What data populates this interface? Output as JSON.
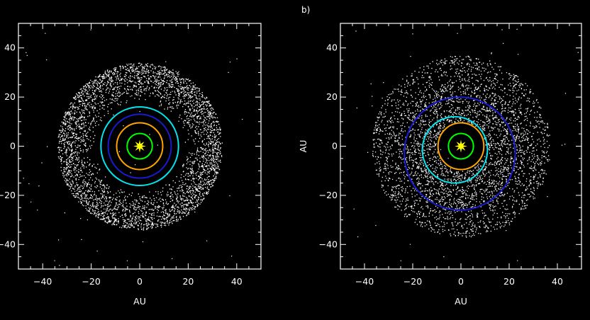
{
  "chart_data": [
    {
      "type": "scatter",
      "panel_label": "",
      "xlabel": "AU",
      "ylabel": "",
      "xlim": [
        -50,
        50
      ],
      "ylim": [
        -50,
        50
      ],
      "xticks": [
        -40,
        -20,
        0,
        20,
        40
      ],
      "yticks": [
        -40,
        -20,
        0,
        20,
        40
      ],
      "xtick_labels": [
        "−40",
        "−20",
        "0",
        "20",
        "40"
      ],
      "ytick_labels": [
        "−40",
        "−20",
        "0",
        "20",
        "40"
      ],
      "grid": false,
      "background": "#000000",
      "particles": {
        "description_free": true,
        "color": "#ffffff",
        "count": 3600,
        "r_min": 18,
        "r_max": 34,
        "center": [
          0,
          0
        ]
      },
      "star": {
        "x": 0,
        "y": 0,
        "color": "#ffff00"
      },
      "orbits": [
        {
          "cx": 0,
          "cy": 0,
          "r": 5.2,
          "color": "#00ff00"
        },
        {
          "cx": 0,
          "cy": 0,
          "r": 9.5,
          "color": "#ffa500"
        },
        {
          "cx": 0,
          "cy": 0,
          "r": 13.0,
          "color": "#1a1ad0"
        },
        {
          "cx": 0,
          "cy": 0,
          "r": 16.0,
          "color": "#00e5ee"
        }
      ]
    },
    {
      "type": "scatter",
      "panel_label": "b)",
      "xlabel": "AU",
      "ylabel": "AU",
      "xlim": [
        -50,
        50
      ],
      "ylim": [
        -50,
        50
      ],
      "xticks": [
        -40,
        -20,
        0,
        20,
        40
      ],
      "yticks": [
        -40,
        -20,
        0,
        20,
        40
      ],
      "xtick_labels": [
        "−40",
        "−20",
        "0",
        "20",
        "40"
      ],
      "ytick_labels": [
        "−40",
        "−20",
        "0",
        "20",
        "40"
      ],
      "grid": false,
      "background": "#000000",
      "particles": {
        "color": "#ffffff",
        "count": 3600,
        "r_min": 10,
        "r_max": 37,
        "center": [
          0,
          0
        ]
      },
      "star": {
        "x": 0,
        "y": 0,
        "color": "#ffff00"
      },
      "orbits": [
        {
          "cx": 0,
          "cy": 0,
          "r": 5.2,
          "color": "#00ff00"
        },
        {
          "cx": 0,
          "cy": 0,
          "r": 9.5,
          "color": "#ffa500"
        },
        {
          "cx": -2.5,
          "cy": -1.5,
          "r": 13.5,
          "color": "#00e5ee"
        },
        {
          "cx": -0.5,
          "cy": -3.0,
          "r": 23.0,
          "color": "#1a1ad0"
        }
      ]
    }
  ]
}
